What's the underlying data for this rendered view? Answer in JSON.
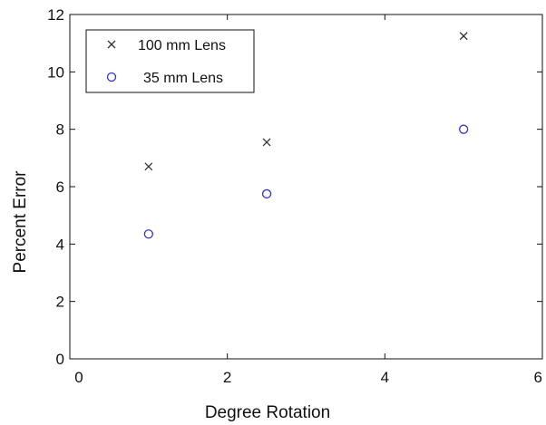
{
  "chart_data": {
    "type": "scatter",
    "xlabel": "Degree Rotation",
    "ylabel": "Percent Error",
    "xlim": [
      0,
      6
    ],
    "ylim": [
      0,
      12
    ],
    "xticks": [
      "0",
      "2",
      "4",
      "6"
    ],
    "yticks": [
      "0",
      "2",
      "4",
      "6",
      "8",
      "10",
      "12"
    ],
    "legend_position": "top-left",
    "grid": false,
    "series": [
      {
        "name": "100 mm Lens",
        "marker": "x",
        "color": "#333333",
        "x": [
          1,
          2.5,
          5
        ],
        "y": [
          6.7,
          7.55,
          11.25
        ]
      },
      {
        "name": "35 mm Lens",
        "marker": "o",
        "color": "#3333cc",
        "x": [
          1,
          2.5,
          5
        ],
        "y": [
          4.35,
          5.75,
          8.0
        ]
      }
    ]
  }
}
